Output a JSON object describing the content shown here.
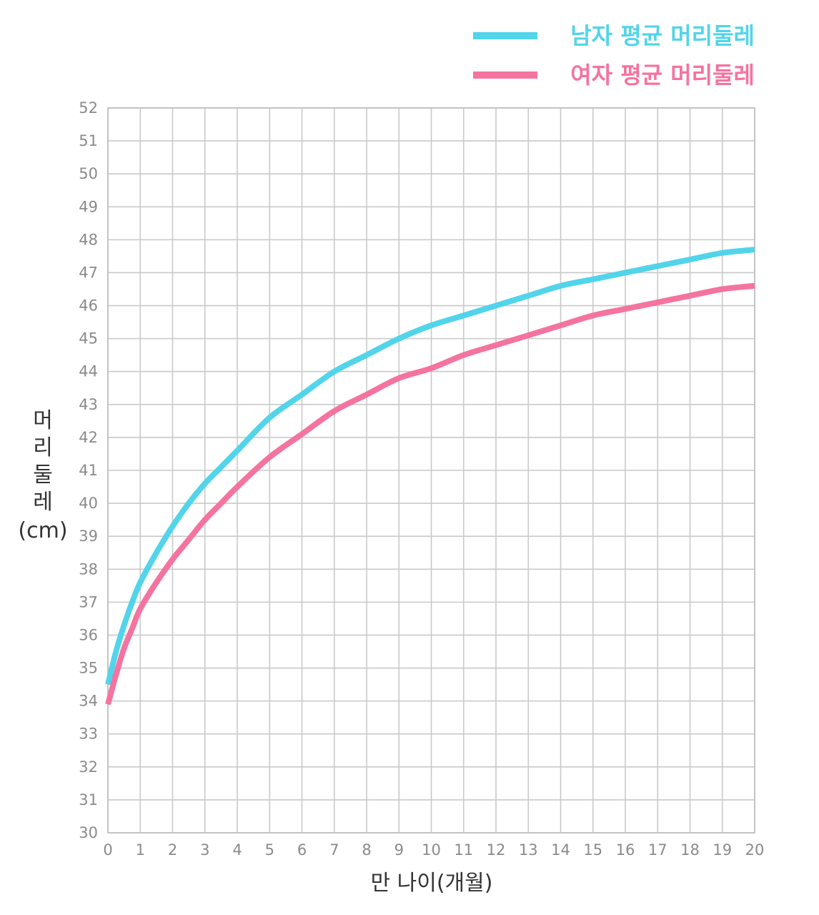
{
  "chart_data": {
    "type": "line",
    "xlabel": "만 나이(개월)",
    "ylabel": "머리둘레 (cm)",
    "xlim": [
      0,
      20
    ],
    "ylim": [
      30,
      52
    ],
    "x_ticks": [
      0,
      1,
      2,
      3,
      4,
      5,
      6,
      7,
      8,
      9,
      10,
      11,
      12,
      13,
      14,
      15,
      16,
      17,
      18,
      19,
      20
    ],
    "y_ticks": [
      30,
      31,
      32,
      33,
      34,
      35,
      36,
      37,
      38,
      39,
      40,
      41,
      42,
      43,
      44,
      45,
      46,
      47,
      48,
      49,
      50,
      51,
      52
    ],
    "grid": true,
    "legend_position": "top-right",
    "x": [
      0,
      0.25,
      0.5,
      0.75,
      1,
      1.5,
      2,
      2.5,
      3,
      3.5,
      4,
      5,
      6,
      7,
      8,
      9,
      10,
      11,
      12,
      13,
      14,
      15,
      16,
      17,
      18,
      19,
      20
    ],
    "series": [
      {
        "name": "남자 평균 머리둘레",
        "color": "#52d4ea",
        "values": [
          34.5,
          35.5,
          36.3,
          37.0,
          37.6,
          38.5,
          39.3,
          40.0,
          40.6,
          41.1,
          41.6,
          42.6,
          43.3,
          44.0,
          44.5,
          45.0,
          45.4,
          45.7,
          46.0,
          46.3,
          46.6,
          46.8,
          47.0,
          47.2,
          47.4,
          47.6,
          47.7
        ]
      },
      {
        "name": "여자 평균 머리둘레",
        "color": "#f5739f",
        "values": [
          33.9,
          34.8,
          35.6,
          36.2,
          36.8,
          37.6,
          38.3,
          38.9,
          39.5,
          40.0,
          40.5,
          41.4,
          42.1,
          42.8,
          43.3,
          43.8,
          44.1,
          44.5,
          44.8,
          45.1,
          45.4,
          45.7,
          45.9,
          46.1,
          46.3,
          46.5,
          46.6
        ]
      }
    ]
  }
}
